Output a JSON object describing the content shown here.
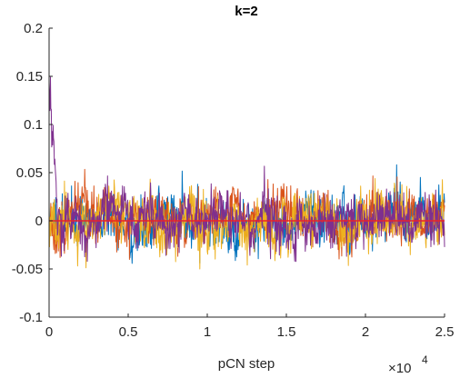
{
  "chart_data": {
    "type": "line",
    "title": "k=2",
    "xlabel": "pCN step",
    "ylabel": "",
    "xlim": [
      0,
      25000
    ],
    "ylim": [
      -0.1,
      0.2
    ],
    "x_ticks": [
      0,
      5000,
      10000,
      15000,
      20000,
      25000
    ],
    "x_tick_labels": [
      "0",
      "0.5",
      "1",
      "1.5",
      "2",
      "2.5"
    ],
    "x_exponent_label": "×10",
    "x_exponent_power": "4",
    "y_ticks": [
      -0.1,
      -0.05,
      0,
      0.05,
      0.1,
      0.15,
      0.2
    ],
    "y_tick_labels": [
      "-0.1",
      "-0.05",
      "0",
      "0.05",
      "0.1",
      "0.15",
      "0.2"
    ],
    "grid": false,
    "legend": "none",
    "series": [
      {
        "color": "#0072BD",
        "noise": 0.012,
        "seed": 11,
        "start": 0.0,
        "features": [
          {
            "x": 5200,
            "dy": -0.025,
            "width": 400
          }
        ]
      },
      {
        "color": "#D95319",
        "noise": 0.011,
        "seed": 23,
        "start": 0.0,
        "features": []
      },
      {
        "color": "#EDB120",
        "noise": 0.013,
        "seed": 37,
        "start": 0.0,
        "features": []
      },
      {
        "color": "#7E2F8E",
        "noise": 0.012,
        "seed": 53,
        "start": 0.17,
        "features": []
      }
    ],
    "reference_line": {
      "y": 0,
      "color": "#E8222B"
    }
  }
}
